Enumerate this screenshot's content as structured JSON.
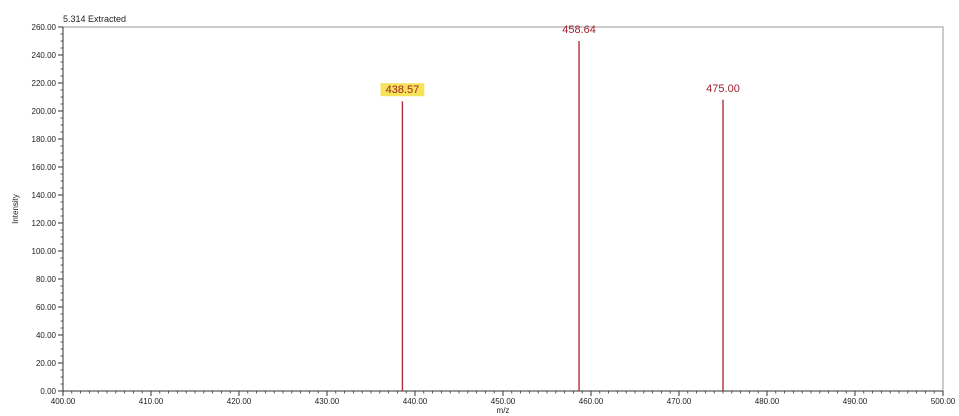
{
  "chart_data": {
    "type": "bar",
    "title": "5.314 Extracted",
    "xlabel": "m/z",
    "ylabel": "Intensity",
    "xlim": [
      400,
      500
    ],
    "ylim": [
      0,
      260
    ],
    "x_ticks": [
      "400.00",
      "410.00",
      "420.00",
      "430.00",
      "440.00",
      "450.00",
      "460.00",
      "470.00",
      "480.00",
      "490.00",
      "500.00"
    ],
    "y_ticks": [
      "0.00",
      "20.00",
      "40.00",
      "60.00",
      "80.00",
      "100.00",
      "120.00",
      "140.00",
      "160.00",
      "180.00",
      "200.00",
      "220.00",
      "240.00",
      "260.00"
    ],
    "grid": false,
    "peaks": [
      {
        "x": 438.57,
        "y": 207,
        "label": "438.57",
        "highlighted": true
      },
      {
        "x": 458.64,
        "y": 250,
        "label": "458.64",
        "highlighted": false
      },
      {
        "x": 475.0,
        "y": 208,
        "label": "475.00",
        "highlighted": false
      }
    ],
    "colors": {
      "stick": "#b0303a",
      "label": "#a0202c",
      "highlight": "#f5e35a",
      "axis": "#333333"
    }
  }
}
